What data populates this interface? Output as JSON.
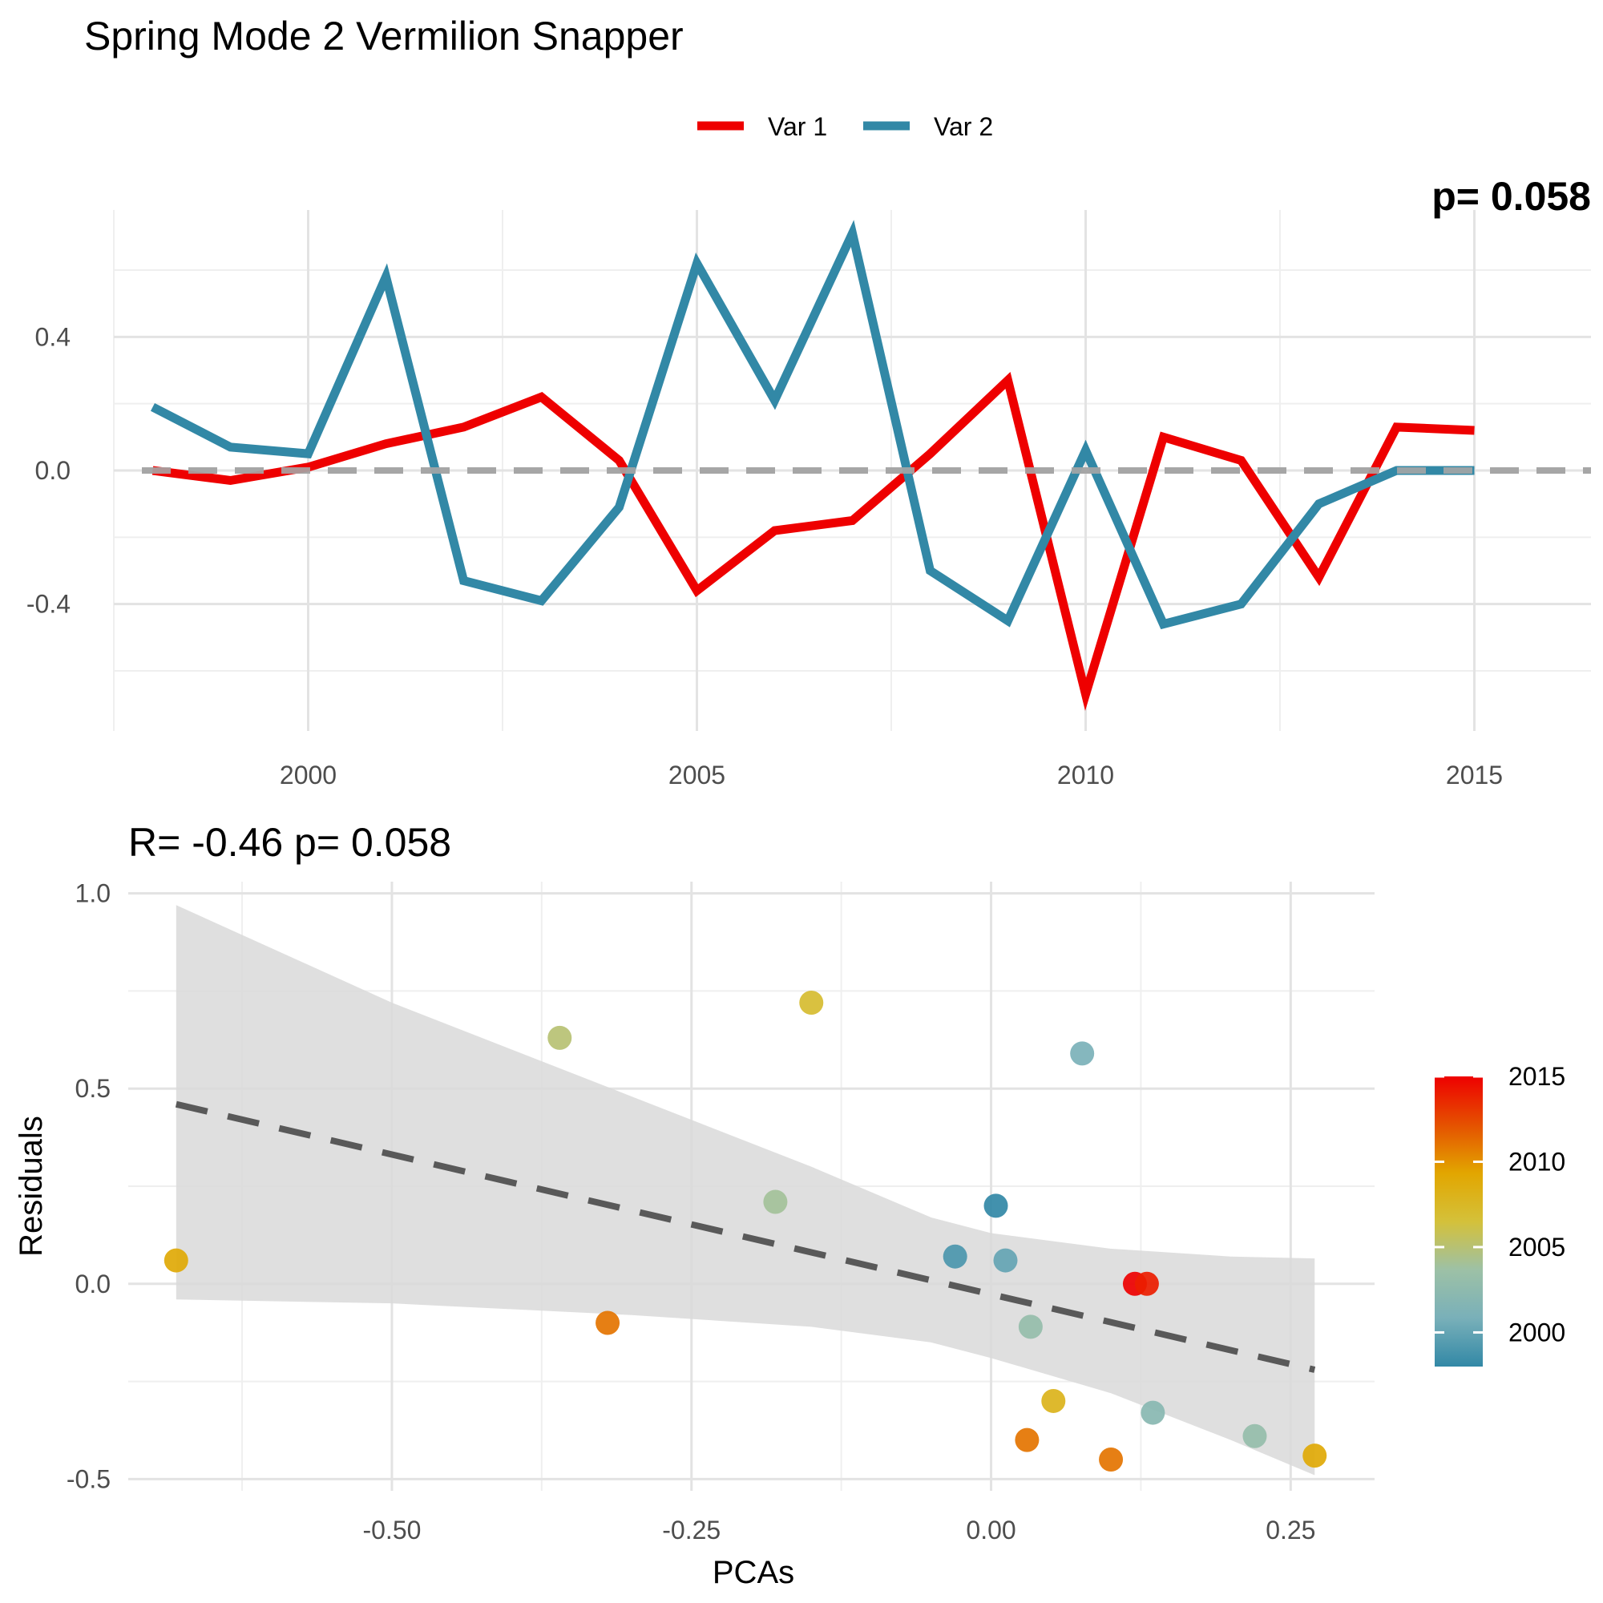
{
  "title": "Spring Mode 2 Vermilion Snapper",
  "chart_data": [
    {
      "type": "line",
      "legend": {
        "position": "top",
        "entries": [
          "Var 1",
          "Var 2"
        ]
      },
      "corner_annotation": "p= 0.058",
      "x": [
        1998,
        1999,
        2000,
        2001,
        2002,
        2003,
        2004,
        2005,
        2006,
        2007,
        2008,
        2009,
        2010,
        2011,
        2012,
        2013,
        2014,
        2015
      ],
      "series": [
        {
          "name": "Var 1",
          "color": "#ee0000",
          "values": [
            0.0,
            -0.03,
            0.01,
            0.08,
            0.13,
            0.22,
            0.03,
            -0.36,
            -0.18,
            -0.15,
            0.05,
            0.27,
            -0.67,
            0.1,
            0.03,
            -0.32,
            0.13,
            0.12
          ]
        },
        {
          "name": "Var 2",
          "color": "#3288a6",
          "values": [
            0.19,
            0.07,
            0.05,
            0.58,
            -0.33,
            -0.39,
            -0.11,
            0.62,
            0.21,
            0.71,
            -0.3,
            -0.45,
            0.06,
            -0.46,
            -0.4,
            -0.1,
            0.0,
            0.0
          ]
        }
      ],
      "reference_line": {
        "y": 0,
        "style": "dashed",
        "color": "#a6a6a6"
      },
      "xlim": [
        1997.5,
        2016.5
      ],
      "ylim": [
        -0.78,
        0.78
      ],
      "x_ticks": [
        "2000",
        "2005",
        "2010",
        "2015"
      ],
      "y_ticks": [
        "-0.4",
        "0.0",
        "0.4"
      ],
      "xlabel": "",
      "ylabel": "",
      "grid": true
    },
    {
      "type": "scatter",
      "title": "R= -0.46  p= 0.058",
      "xlabel": "PCAs",
      "ylabel": "Residuals",
      "xlim": [
        -0.72,
        0.32
      ],
      "ylim": [
        -0.53,
        1.03
      ],
      "x_ticks": [
        "-0.50",
        "-0.25",
        "0.00",
        "0.25"
      ],
      "y_ticks": [
        "-0.5",
        "0.0",
        "0.5",
        "1.0"
      ],
      "grid": true,
      "points": [
        {
          "x": -0.68,
          "y": 0.06,
          "year": 2009
        },
        {
          "x": -0.36,
          "y": 0.63,
          "year": 2005
        },
        {
          "x": -0.32,
          "y": -0.1,
          "year": 2011
        },
        {
          "x": -0.18,
          "y": 0.21,
          "year": 2004
        },
        {
          "x": -0.15,
          "y": 0.72,
          "year": 2007
        },
        {
          "x": -0.03,
          "y": 0.07,
          "year": 1999
        },
        {
          "x": 0.004,
          "y": 0.2,
          "year": 1998
        },
        {
          "x": 0.012,
          "y": 0.06,
          "year": 2000
        },
        {
          "x": 0.03,
          "y": -0.4,
          "year": 2011
        },
        {
          "x": 0.033,
          "y": -0.11,
          "year": 2003
        },
        {
          "x": 0.052,
          "y": -0.3,
          "year": 2008
        },
        {
          "x": 0.076,
          "y": 0.59,
          "year": 2001
        },
        {
          "x": 0.1,
          "y": -0.45,
          "year": 2011
        },
        {
          "x": 0.12,
          "y": 0.0,
          "year": 2015
        },
        {
          "x": 0.13,
          "y": 0.0,
          "year": 2014
        },
        {
          "x": 0.135,
          "y": -0.33,
          "year": 2002
        },
        {
          "x": 0.22,
          "y": -0.39,
          "year": 2003
        },
        {
          "x": 0.27,
          "y": -0.44,
          "year": 2009
        }
      ],
      "fit_line": {
        "x": [
          -0.68,
          0.27
        ],
        "y": [
          0.46,
          -0.22
        ],
        "style": "dashed",
        "color": "#595959"
      },
      "confidence_band": {
        "x": [
          -0.68,
          -0.5,
          -0.3,
          -0.15,
          -0.05,
          0.0,
          0.1,
          0.2,
          0.27
        ],
        "upper": [
          0.97,
          0.72,
          0.48,
          0.3,
          0.17,
          0.13,
          0.09,
          0.07,
          0.065
        ],
        "lower": [
          -0.04,
          -0.05,
          -0.08,
          -0.11,
          -0.15,
          -0.19,
          -0.28,
          -0.4,
          -0.49
        ],
        "color": "#d9d9d9"
      },
      "colorbar": {
        "min": 1998,
        "max": 2015,
        "ticks": [
          "2000",
          "2005",
          "2010",
          "2015"
        ],
        "colors": [
          "#3288a6",
          "#79b0b9",
          "#9dc1a6",
          "#d4c13a",
          "#e2a600",
          "#e55100",
          "#ee0000"
        ]
      }
    }
  ]
}
